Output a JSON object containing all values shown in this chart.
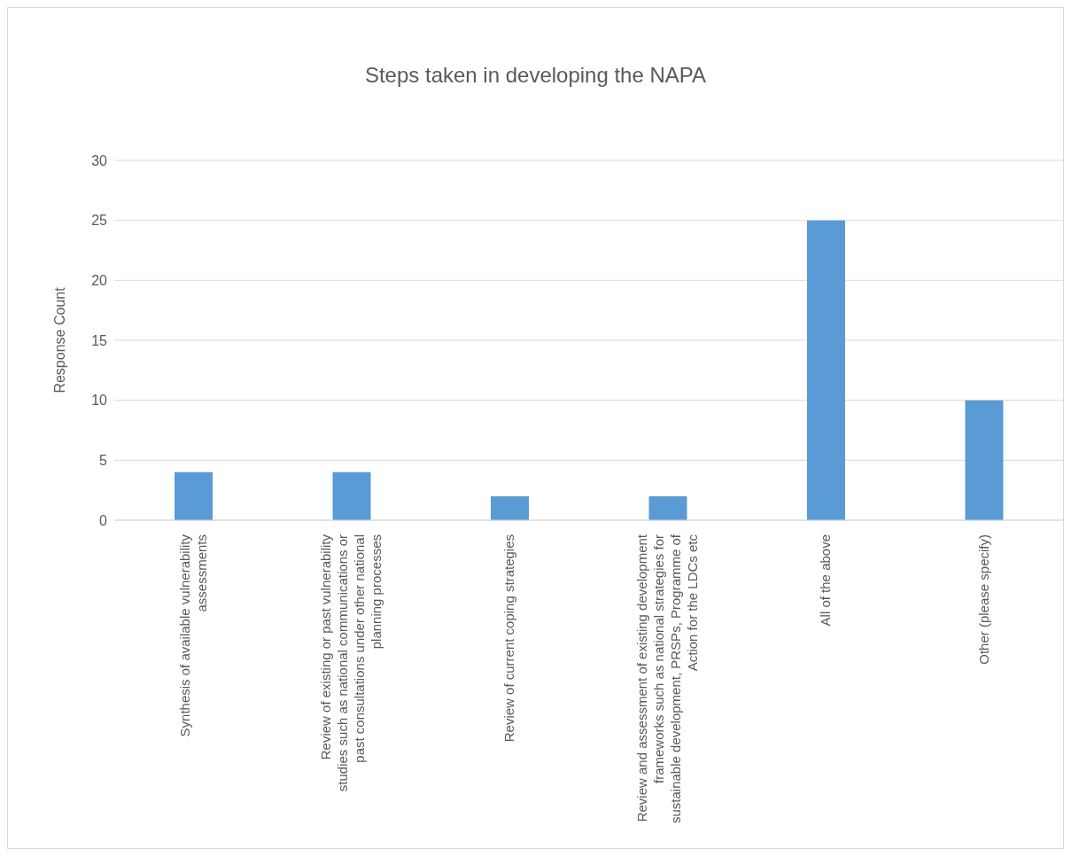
{
  "chart_data": {
    "type": "bar",
    "title": "Steps taken in developing the NAPA",
    "ylabel": "Response Count",
    "categories": [
      "Synthesis of available vulnerability assessments",
      "Review of existing or past vulnerability studies such as national communications or past consultations under other national planning processes",
      "Review of current coping strategies",
      "Review and assessment of existing development frameworks such as national strategies for sustainable development, PRSPs, Programme of Action for the LDCs etc",
      "All of the above",
      "Other (please specify)"
    ],
    "values": [
      4,
      4,
      2,
      2,
      25,
      10
    ],
    "color": "#5b9bd5",
    "ylim": [
      0,
      30
    ],
    "yticks": [
      0,
      5,
      10,
      15,
      20,
      25,
      30
    ],
    "grid": "y"
  }
}
